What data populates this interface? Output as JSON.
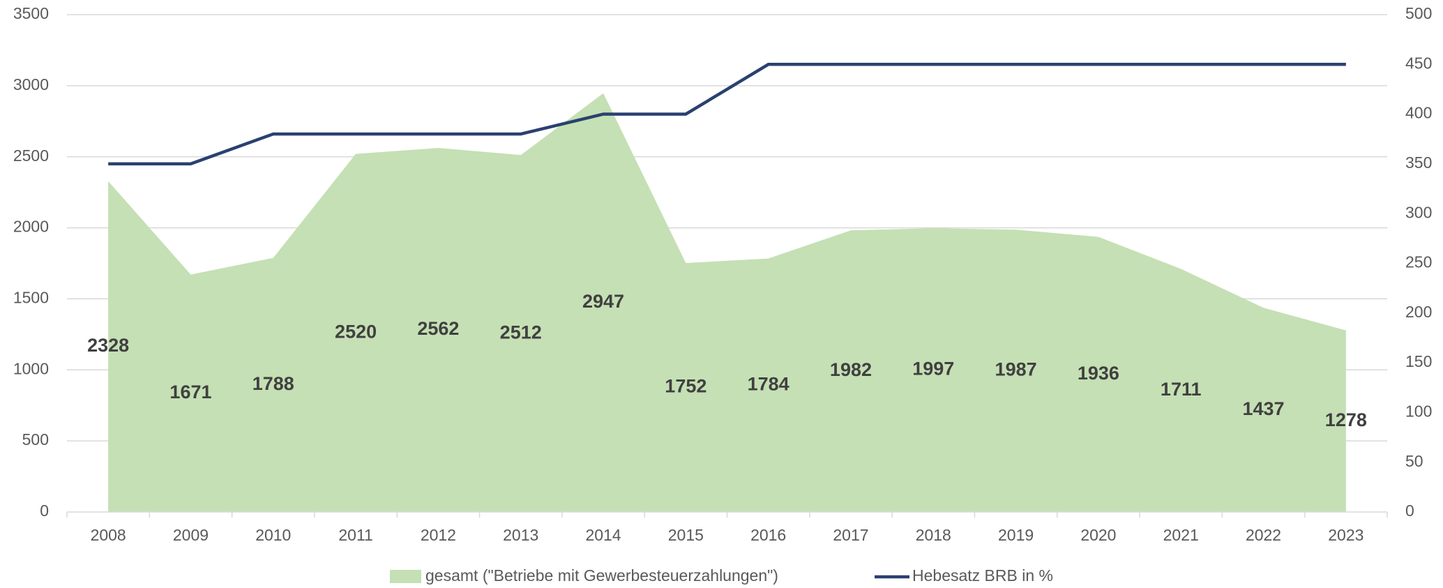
{
  "chart_data": {
    "type": "area",
    "categories": [
      "2008",
      "2009",
      "2010",
      "2011",
      "2012",
      "2013",
      "2014",
      "2015",
      "2016",
      "2017",
      "2018",
      "2019",
      "2020",
      "2021",
      "2022",
      "2023"
    ],
    "series": [
      {
        "name": "gesamt (\"Betriebe mit Gewerbesteuerzahlungen\")",
        "type": "area",
        "color": "#c5e0b4",
        "values": [
          2328,
          1671,
          1788,
          2520,
          2562,
          2512,
          2947,
          1752,
          1784,
          1982,
          1997,
          1987,
          1936,
          1711,
          1437,
          1278
        ]
      },
      {
        "name": "Hebesatz BRB in %",
        "type": "line",
        "axis": "y2",
        "color": "#2a4170",
        "values": [
          350,
          350,
          380,
          380,
          380,
          380,
          400,
          400,
          450,
          450,
          450,
          450,
          450,
          450,
          450,
          450
        ]
      }
    ],
    "ylim": [
      0,
      3500
    ],
    "yticks": [
      0,
      500,
      1000,
      1500,
      2000,
      2500,
      3000,
      3500
    ],
    "y2lim": [
      0,
      500
    ],
    "y2ticks": [
      0,
      50,
      100,
      150,
      200,
      250,
      300,
      350,
      400,
      450,
      500
    ],
    "grid": true,
    "legend": "bottom"
  }
}
